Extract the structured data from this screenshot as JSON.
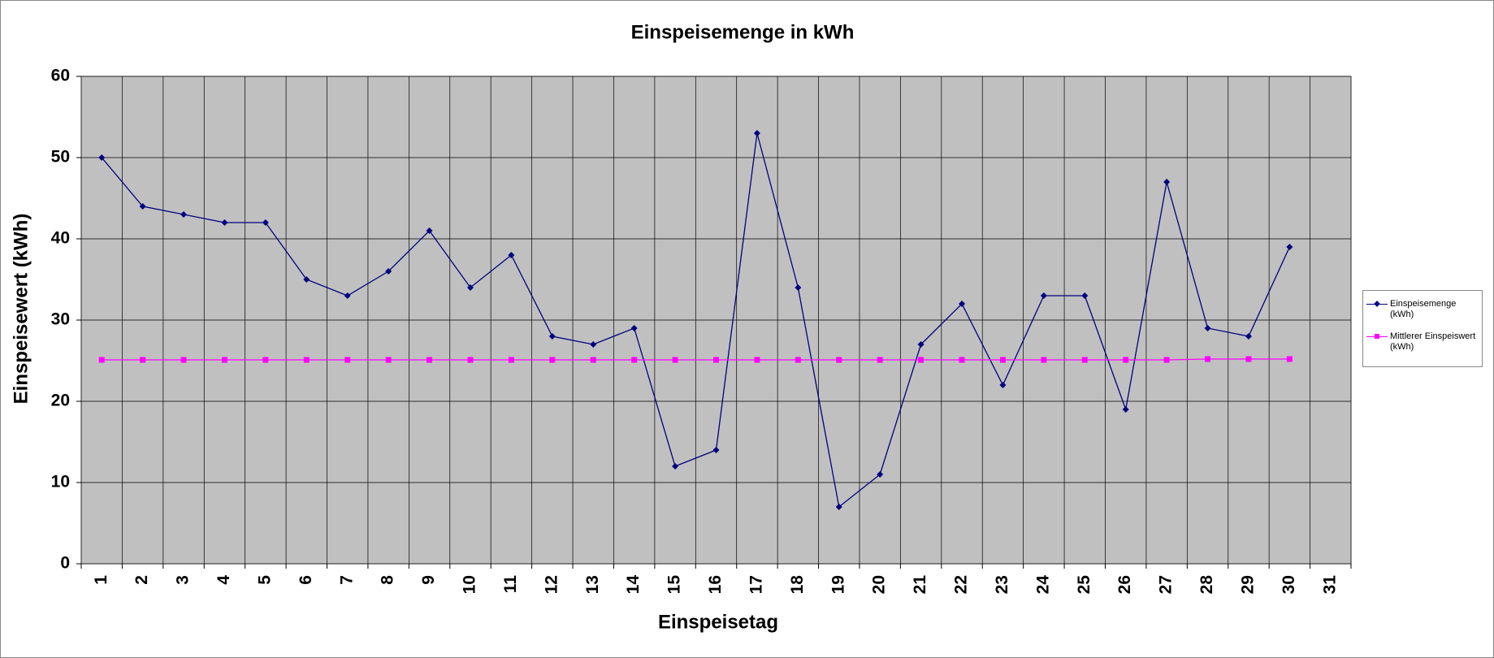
{
  "chart_data": {
    "type": "line",
    "title": "Einspeisemenge in kWh",
    "x_label": "Einspeisetag",
    "y_label": "Einspeisewert  (kWh)",
    "categories": [
      "1",
      "2",
      "3",
      "4",
      "5",
      "6",
      "7",
      "8",
      "9",
      "10",
      "11",
      "12",
      "13",
      "14",
      "15",
      "16",
      "17",
      "18",
      "19",
      "20",
      "21",
      "22",
      "23",
      "24",
      "25",
      "26",
      "27",
      "28",
      "29",
      "30",
      "31"
    ],
    "series": [
      {
        "name": "Einspeisemenge (kWh)",
        "color": "#000080",
        "marker": "diamond",
        "values": [
          50,
          44,
          43,
          42,
          42,
          35,
          33,
          36,
          41,
          34,
          38,
          28,
          27,
          29,
          12,
          14,
          53,
          34,
          7,
          11,
          27,
          32,
          22,
          33,
          33,
          19,
          47,
          29,
          28,
          39,
          null
        ]
      },
      {
        "name": "Mittlerer Einspeiswert (kWh)",
        "color": "#ff00ff",
        "marker": "square",
        "values": [
          25.1,
          25.1,
          25.1,
          25.1,
          25.1,
          25.1,
          25.1,
          25.1,
          25.1,
          25.1,
          25.1,
          25.1,
          25.1,
          25.1,
          25.1,
          25.1,
          25.1,
          25.1,
          25.1,
          25.1,
          25.1,
          25.1,
          25.1,
          25.1,
          25.1,
          25.1,
          25.1,
          25.2,
          25.2,
          25.2,
          null
        ]
      }
    ],
    "ylim": [
      0,
      60
    ],
    "yticks": [
      0,
      10,
      20,
      30,
      40,
      50,
      60
    ],
    "grid": true,
    "legend": "right"
  }
}
